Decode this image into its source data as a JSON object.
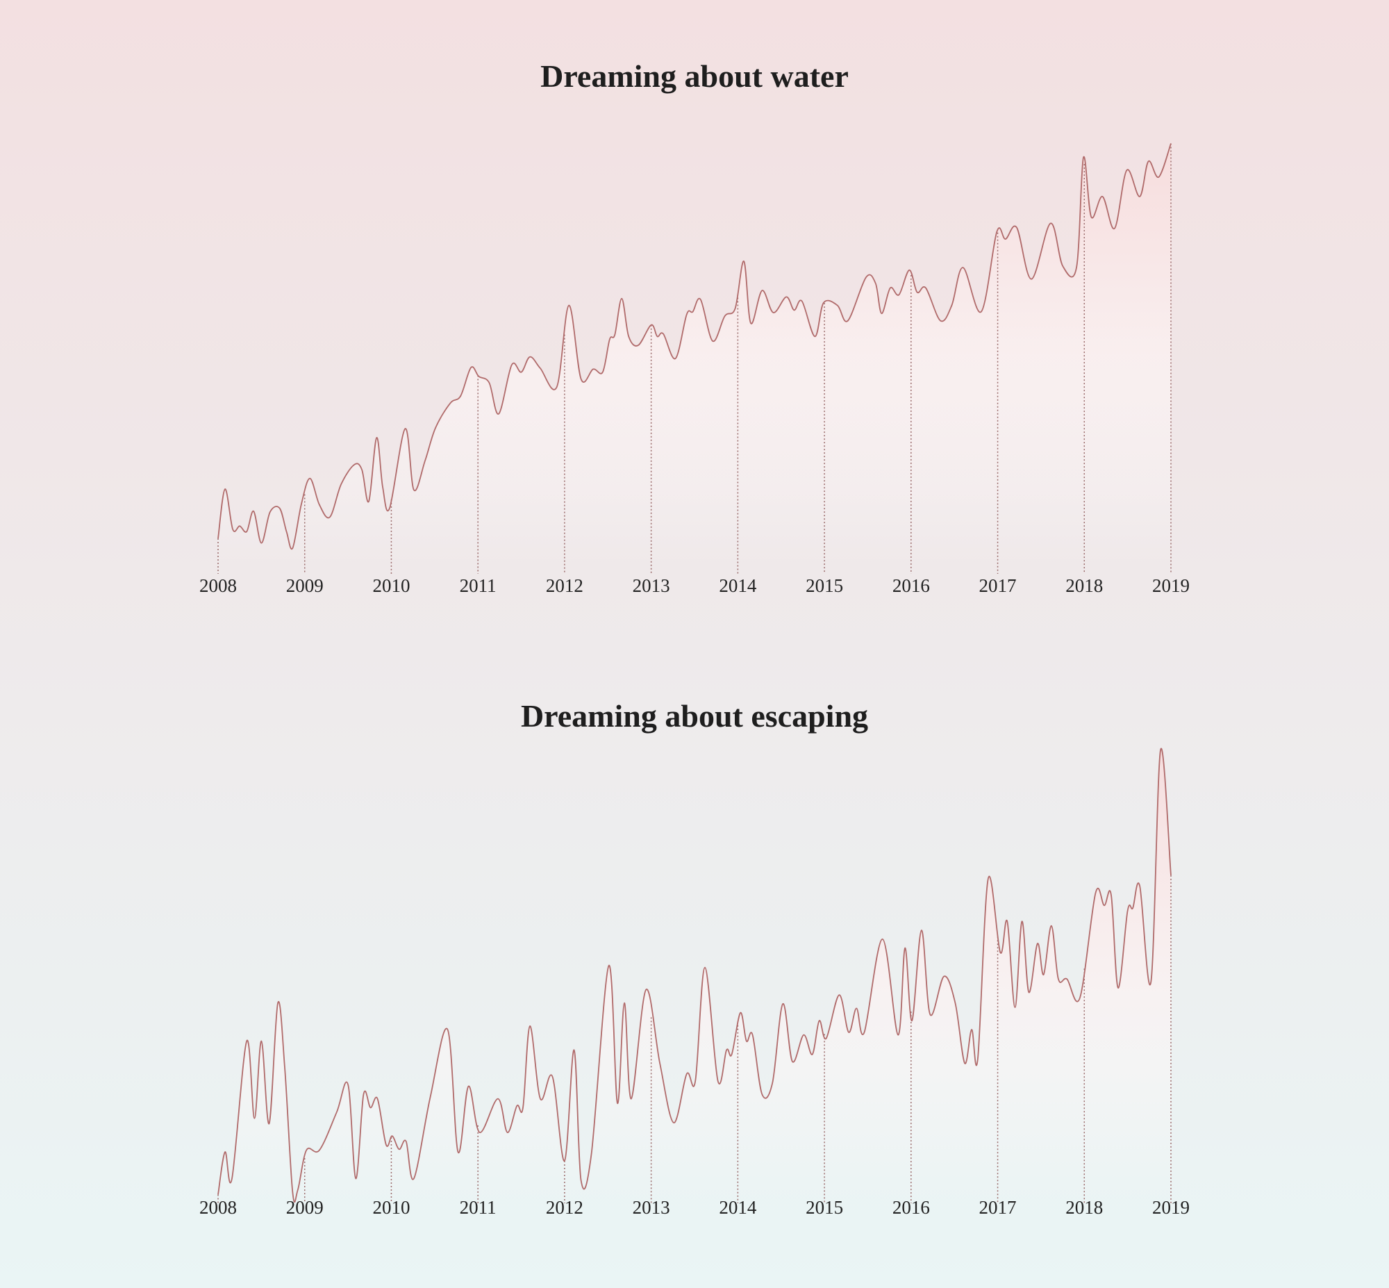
{
  "chart_data": [
    {
      "type": "line",
      "title": "Dreaming about water",
      "color": "#b06a6a",
      "xlim": [
        2008,
        2019
      ],
      "xticks": [
        2008,
        2009,
        2010,
        2011,
        2012,
        2013,
        2014,
        2015,
        2016,
        2017,
        2018,
        2019
      ],
      "ylim": [
        0,
        100
      ],
      "x": [
        2008.0,
        2008.08,
        2008.17,
        2008.25,
        2008.33,
        2008.41,
        2008.5,
        2008.6,
        2008.71,
        2008.79,
        2008.86,
        2008.96,
        2009.06,
        2009.17,
        2009.29,
        2009.42,
        2009.57,
        2009.66,
        2009.74,
        2009.83,
        2009.9,
        2009.98,
        2010.16,
        2010.26,
        2010.39,
        2010.51,
        2010.68,
        2010.8,
        2010.92,
        2011.01,
        2011.13,
        2011.24,
        2011.39,
        2011.5,
        2011.6,
        2011.72,
        2011.91,
        2012.05,
        2012.19,
        2012.33,
        2012.44,
        2012.52,
        2012.58,
        2012.66,
        2012.74,
        2012.85,
        2013.0,
        2013.07,
        2013.14,
        2013.28,
        2013.41,
        2013.48,
        2013.57,
        2013.71,
        2013.85,
        2013.97,
        2014.07,
        2014.15,
        2014.28,
        2014.41,
        2014.56,
        2014.65,
        2014.74,
        2014.89,
        2014.99,
        2015.15,
        2015.27,
        2015.48,
        2015.59,
        2015.66,
        2015.76,
        2015.86,
        2015.98,
        2016.07,
        2016.17,
        2016.34,
        2016.47,
        2016.6,
        2016.81,
        2016.99,
        2017.09,
        2017.22,
        2017.39,
        2017.61,
        2017.75,
        2017.91,
        2017.99,
        2018.08,
        2018.21,
        2018.35,
        2018.49,
        2018.64,
        2018.74,
        2018.86,
        2019.0
      ],
      "values": [
        6.7,
        18.3,
        8.8,
        9.6,
        8.3,
        13.1,
        5.6,
        12.9,
        13.8,
        8.3,
        4.4,
        14.6,
        20.8,
        14.6,
        11.7,
        19.4,
        24.0,
        22.9,
        15.4,
        30.4,
        18.8,
        13.8,
        32.5,
        18.1,
        25.0,
        32.7,
        38.5,
        40.2,
        46.9,
        44.8,
        43.3,
        36.0,
        47.5,
        45.8,
        49.4,
        46.7,
        42.3,
        61.5,
        44.2,
        46.5,
        45.8,
        53.5,
        54.6,
        63.1,
        54.2,
        52.1,
        56.9,
        54.2,
        54.8,
        49.0,
        59.4,
        60.0,
        62.9,
        53.1,
        59.0,
        60.8,
        71.9,
        57.3,
        65.0,
        59.8,
        63.5,
        60.4,
        62.5,
        54.2,
        62.1,
        61.5,
        57.9,
        68.1,
        66.7,
        59.6,
        65.6,
        64.0,
        69.8,
        64.6,
        65.6,
        57.9,
        61.5,
        70.4,
        60.0,
        78.8,
        77.1,
        79.8,
        67.7,
        80.8,
        70.8,
        70.4,
        96.3,
        82.3,
        87.1,
        79.6,
        93.3,
        87.1,
        95.4,
        91.7,
        99.6
      ]
    },
    {
      "type": "line",
      "title": "Dreaming about escaping",
      "color": "#b06a6a",
      "xlim": [
        2008,
        2019
      ],
      "xticks": [
        2008,
        2009,
        2010,
        2011,
        2012,
        2013,
        2014,
        2015,
        2016,
        2017,
        2018,
        2019
      ],
      "ylim": [
        0,
        102
      ],
      "x": [
        2008.0,
        2008.08,
        2008.16,
        2008.33,
        2008.42,
        2008.5,
        2008.59,
        2008.69,
        2008.77,
        2008.86,
        2008.92,
        2009.02,
        2009.17,
        2009.37,
        2009.5,
        2009.59,
        2009.68,
        2009.76,
        2009.84,
        2009.94,
        2010.01,
        2010.09,
        2010.17,
        2010.26,
        2010.45,
        2010.65,
        2010.77,
        2010.89,
        2011.02,
        2011.23,
        2011.34,
        2011.45,
        2011.52,
        2011.6,
        2011.72,
        2011.86,
        2012.0,
        2012.11,
        2012.19,
        2012.31,
        2012.51,
        2012.61,
        2012.69,
        2012.77,
        2012.94,
        2013.1,
        2013.26,
        2013.41,
        2013.51,
        2013.62,
        2013.77,
        2013.87,
        2013.93,
        2014.03,
        2014.1,
        2014.17,
        2014.28,
        2014.4,
        2014.52,
        2014.63,
        2014.76,
        2014.86,
        2014.94,
        2015.02,
        2015.17,
        2015.28,
        2015.37,
        2015.46,
        2015.67,
        2015.85,
        2015.93,
        2016.01,
        2016.12,
        2016.22,
        2016.38,
        2016.51,
        2016.62,
        2016.7,
        2016.77,
        2016.89,
        2017.03,
        2017.11,
        2017.2,
        2017.28,
        2017.36,
        2017.46,
        2017.53,
        2017.62,
        2017.7,
        2017.8,
        2017.95,
        2018.13,
        2018.23,
        2018.31,
        2018.39,
        2018.5,
        2018.56,
        2018.64,
        2018.77,
        2018.88,
        2019.0
      ],
      "values": [
        0.4,
        10.0,
        4.0,
        35.0,
        17.6,
        35.0,
        16.4,
        43.6,
        29.0,
        1.0,
        1.4,
        10.4,
        10.4,
        19.0,
        25.2,
        4.0,
        23.0,
        20.0,
        22.0,
        11.6,
        13.6,
        10.6,
        12.4,
        4.0,
        22.4,
        37.6,
        10.0,
        24.8,
        14.4,
        22.0,
        14.4,
        20.4,
        20.0,
        38.4,
        22.0,
        27.0,
        8.0,
        33.0,
        3.6,
        9.6,
        52.0,
        21.0,
        43.6,
        22.0,
        46.6,
        30.0,
        16.6,
        27.6,
        26.0,
        51.6,
        26.0,
        33.0,
        32.0,
        41.4,
        35.0,
        36.4,
        23.0,
        25.6,
        43.4,
        30.4,
        36.4,
        32.0,
        39.6,
        35.6,
        45.4,
        37.0,
        42.4,
        37.0,
        58.0,
        36.4,
        56.0,
        39.6,
        60.0,
        41.0,
        49.6,
        43.6,
        30.0,
        37.6,
        31.0,
        71.6,
        55.0,
        62.0,
        42.6,
        62.0,
        46.0,
        57.0,
        50.0,
        61.0,
        49.0,
        49.0,
        44.8,
        68.4,
        65.6,
        68.0,
        47.0,
        64.4,
        65.0,
        70.0,
        48.4,
        100.6,
        72.4
      ]
    }
  ]
}
